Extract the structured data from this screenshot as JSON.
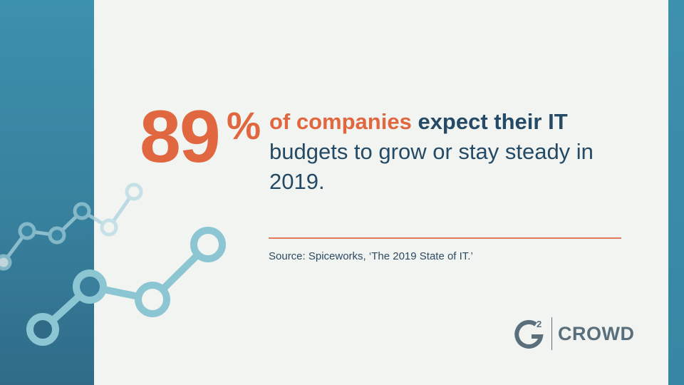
{
  "stat": {
    "number": "89",
    "percent": "%"
  },
  "headline": {
    "part1": "of companies",
    "part2": "expect their IT",
    "part3": "budgets to grow or stay steady in 2019."
  },
  "source": "Source: Spiceworks, ‘The 2019 State of IT.’",
  "logo": {
    "mark": "G2",
    "text": "CROWD"
  },
  "colors": {
    "accent": "#e0673f",
    "text": "#244a66",
    "band": "#3c91ad",
    "background": "#f2f4f1"
  }
}
